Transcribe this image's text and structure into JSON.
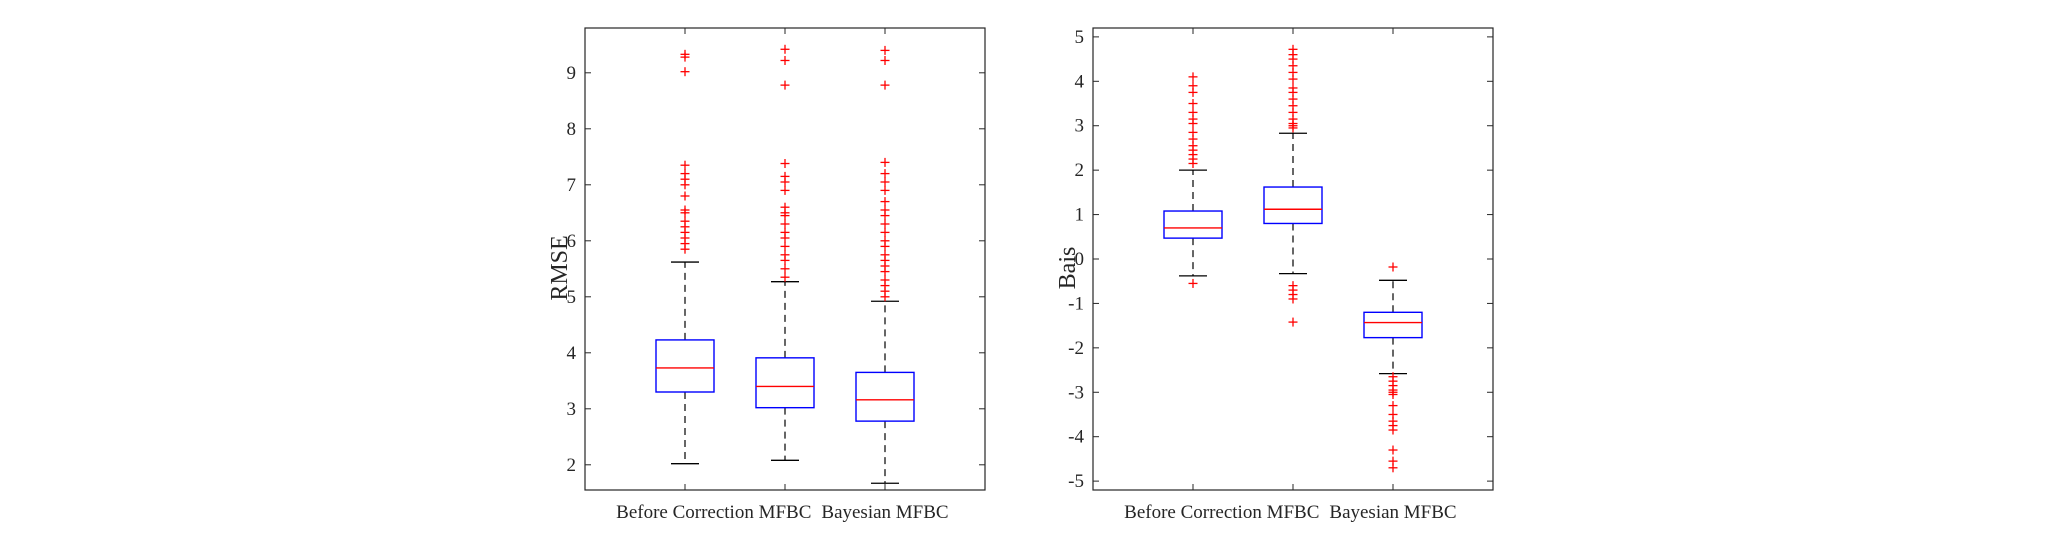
{
  "colors": {
    "box": "#0000ff",
    "median": "#ff0000",
    "outlier": "#ff0000",
    "whisker": "#000000",
    "axes": "#262626"
  },
  "chart_data": [
    {
      "type": "box",
      "ylabel": "RMSE",
      "ylim": [
        1.55,
        9.8
      ],
      "yticks": [
        2,
        3,
        4,
        5,
        6,
        7,
        8,
        9
      ],
      "categories": [
        "Before Correction",
        "MFBC",
        "Bayesian MFBC"
      ],
      "boxes": [
        {
          "whisker_low": 2.02,
          "q1": 3.3,
          "median": 3.73,
          "q3": 4.23,
          "whisker_high": 5.62,
          "outliers": [
            5.85,
            5.95,
            6.05,
            6.15,
            6.25,
            6.35,
            6.5,
            6.55,
            6.8,
            7.0,
            7.1,
            7.2,
            7.35,
            9.02,
            9.28,
            9.33
          ]
        },
        {
          "whisker_low": 2.08,
          "q1": 3.02,
          "median": 3.4,
          "q3": 3.91,
          "whisker_high": 5.27,
          "outliers": [
            5.35,
            5.5,
            5.65,
            5.75,
            5.9,
            6.05,
            6.15,
            6.3,
            6.45,
            6.5,
            6.6,
            6.9,
            7.05,
            7.15,
            7.38,
            8.78,
            9.22,
            9.42
          ]
        },
        {
          "whisker_low": 1.67,
          "q1": 2.78,
          "median": 3.16,
          "q3": 3.65,
          "whisker_high": 4.92,
          "outliers": [
            5.0,
            5.1,
            5.2,
            5.3,
            5.45,
            5.55,
            5.65,
            5.75,
            5.9,
            6.0,
            6.15,
            6.3,
            6.45,
            6.55,
            6.7,
            6.9,
            7.05,
            7.2,
            7.4,
            8.78,
            9.22,
            9.4
          ]
        }
      ]
    },
    {
      "type": "box",
      "ylabel": "Bais",
      "ylim": [
        -5.2,
        5.2
      ],
      "yticks": [
        -5,
        -4,
        -3,
        -2,
        -1,
        0,
        1,
        2,
        3,
        4,
        5
      ],
      "categories": [
        "Before Correction",
        "MFBC",
        "Bayesian MFBC"
      ],
      "boxes": [
        {
          "whisker_low": -0.38,
          "q1": 0.47,
          "median": 0.7,
          "q3": 1.08,
          "whisker_high": 2.0,
          "outliers": [
            -0.55,
            2.15,
            2.25,
            2.35,
            2.45,
            2.55,
            2.7,
            2.85,
            3.05,
            3.15,
            3.3,
            3.5,
            3.75,
            3.9,
            4.1
          ]
        },
        {
          "whisker_low": -0.33,
          "q1": 0.8,
          "median": 1.12,
          "q3": 1.62,
          "whisker_high": 2.83,
          "outliers": [
            -0.6,
            -0.7,
            -0.8,
            -0.9,
            -1.42,
            2.95,
            3.0,
            3.05,
            3.15,
            3.3,
            3.45,
            3.6,
            3.75,
            3.85,
            4.05,
            4.2,
            4.35,
            4.5,
            4.6,
            4.72
          ]
        },
        {
          "whisker_low": -2.58,
          "q1": -1.77,
          "median": -1.43,
          "q3": -1.2,
          "whisker_high": -0.48,
          "outliers": [
            -0.18,
            -2.65,
            -2.75,
            -2.85,
            -2.95,
            -3.0,
            -3.05,
            -3.3,
            -3.5,
            -3.65,
            -3.75,
            -3.85,
            -4.3,
            -4.55,
            -4.7
          ]
        }
      ]
    }
  ]
}
